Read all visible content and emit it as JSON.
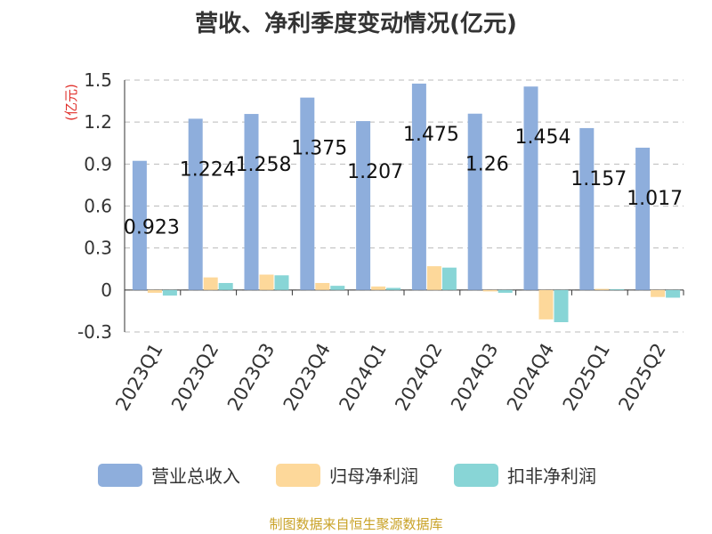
{
  "title": "营收、净利季度变动情况(亿元)",
  "footer": "制图数据来自恒生聚源数据库",
  "chart_data": {
    "type": "bar",
    "title": "营收、净利季度变动情况(亿元)",
    "ylabel": "(亿元)",
    "xlabel": "",
    "categories": [
      "2023Q1",
      "2023Q2",
      "2023Q3",
      "2023Q4",
      "2024Q1",
      "2024Q2",
      "2024Q3",
      "2024Q4",
      "2025Q1",
      "2025Q2"
    ],
    "ylim": [
      -0.3,
      1.5
    ],
    "yticks": [
      "-0.3",
      "0",
      "0.3",
      "0.6",
      "0.9",
      "1.2",
      "1.5"
    ],
    "grid": true,
    "legend_position": "bottom",
    "series": [
      {
        "name": "营业总收入",
        "color": "#8eaedc",
        "values": [
          0.923,
          1.224,
          1.258,
          1.375,
          1.207,
          1.475,
          1.26,
          1.454,
          1.157,
          1.017
        ],
        "labels": [
          "0.923",
          "1.224",
          "1.258",
          "1.375",
          "1.207",
          "1.475",
          "1.26",
          "1.454",
          "1.157",
          "1.017"
        ]
      },
      {
        "name": "归母净利润",
        "color": "#fdd89a",
        "values": [
          -0.02,
          0.09,
          0.11,
          0.05,
          0.025,
          0.17,
          -0.01,
          -0.21,
          0.008,
          -0.05
        ]
      },
      {
        "name": "扣非净利润",
        "color": "#88d5d6",
        "values": [
          -0.04,
          0.05,
          0.105,
          0.03,
          0.015,
          0.16,
          -0.02,
          -0.23,
          0.006,
          -0.055
        ]
      }
    ]
  }
}
